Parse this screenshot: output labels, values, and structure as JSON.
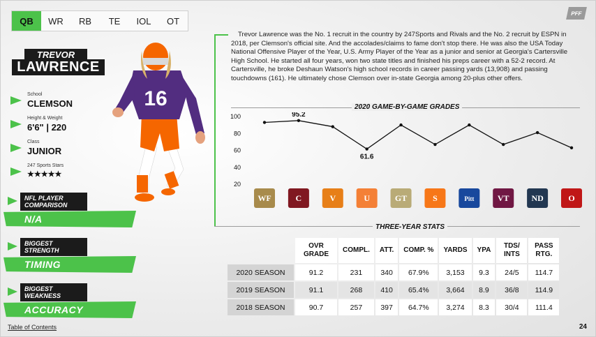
{
  "tabs": [
    "QB",
    "WR",
    "RB",
    "TE",
    "IOL",
    "OT"
  ],
  "active_tab": "QB",
  "logo": "PFF",
  "player": {
    "first": "TREVOR",
    "last": "LAWRENCE",
    "jersey": "16"
  },
  "info": [
    {
      "label": "School",
      "value": "CLEMSON"
    },
    {
      "label": "Height & Weight",
      "value": "6'6\" | 220"
    },
    {
      "label": "Class",
      "value": "JUNIOR"
    },
    {
      "label": "247 Sports Stars",
      "value": "★★★★★"
    }
  ],
  "badges": [
    {
      "header": "NFL PLAYER COMPARISON",
      "value": "N/A"
    },
    {
      "header": "BIGGEST STRENGTH",
      "value": "TIMING"
    },
    {
      "header": "BIGGEST WEAKNESS",
      "value": "ACCURACY"
    }
  ],
  "bio": "Trevor Lawrence was the No. 1 recruit in the country by 247Sports and Rivals and the No. 2 recruit by ESPN in 2018, per Clemson's official site. And the accolades/claims to fame don't stop there. He was also the USA Today National Offensive Player of the Year, U.S. Army Player of the Year as a junior and senior at Georgia's Cartersville High School. He started all four years, won two state titles and finished his preps career with a 52-2 record. At Cartersville, he broke Deshaun Watson's high school records in career passing yards (13,908) and passing touchdowns (161). He ultimately chose Clemson over in-state Georgia among 20-plus other offers.",
  "chart_title": "2020 GAME-BY-GAME GRADES",
  "chart_data": {
    "type": "line",
    "title": "2020 GAME-BY-GAME GRADES",
    "categories": [
      "WF",
      "SC",
      "UVA",
      "MIA",
      "GT",
      "SYR",
      "PITT",
      "VT",
      "ND",
      "OSU"
    ],
    "values": [
      93,
      95.2,
      88,
      61.6,
      90,
      67,
      90,
      67,
      81,
      63
    ],
    "ylim": [
      20,
      100
    ],
    "yticks": [
      20,
      40,
      60,
      80,
      100
    ],
    "labeled_points": [
      {
        "index": 1,
        "label": "95.2"
      },
      {
        "index": 3,
        "label": "61.6"
      }
    ],
    "grid": false
  },
  "team_logos": [
    {
      "abbr": "WF",
      "color": "#9e7e38"
    },
    {
      "abbr": "C",
      "color": "#73000a"
    },
    {
      "abbr": "V",
      "color": "#e57200"
    },
    {
      "abbr": "U",
      "color": "#f47321"
    },
    {
      "abbr": "GT",
      "color": "#b3a369"
    },
    {
      "abbr": "S",
      "color": "#f76900"
    },
    {
      "abbr": "Pitt",
      "color": "#003594"
    },
    {
      "abbr": "VT",
      "color": "#630031"
    },
    {
      "abbr": "ND",
      "color": "#0c2340"
    },
    {
      "abbr": "O",
      "color": "#bb0000"
    }
  ],
  "stats_title": "THREE-YEAR STATS",
  "stats": {
    "headers": [
      "OVR GRADE",
      "COMPL.",
      "ATT.",
      "COMP. %",
      "YARDS",
      "YPA",
      "TDS/ INTS",
      "PASS RTG."
    ],
    "rows": [
      {
        "season": "2020 SEASON",
        "values": [
          "91.2",
          "231",
          "340",
          "67.9%",
          "3,153",
          "9.3",
          "24/5",
          "114.7"
        ]
      },
      {
        "season": "2019 SEASON",
        "values": [
          "91.1",
          "268",
          "410",
          "65.4%",
          "3,664",
          "8.9",
          "36/8",
          "114.9"
        ]
      },
      {
        "season": "2018 SEASON",
        "values": [
          "90.7",
          "257",
          "397",
          "64.7%",
          "3,274",
          "8.3",
          "30/4",
          "111.4"
        ]
      }
    ]
  },
  "footer": {
    "link": "Table of Contents",
    "page": "24"
  },
  "colors": {
    "accent": "#4cc24a",
    "dark": "#1b1b1b",
    "clemson_orange": "#f56600",
    "clemson_purple": "#522d80"
  }
}
